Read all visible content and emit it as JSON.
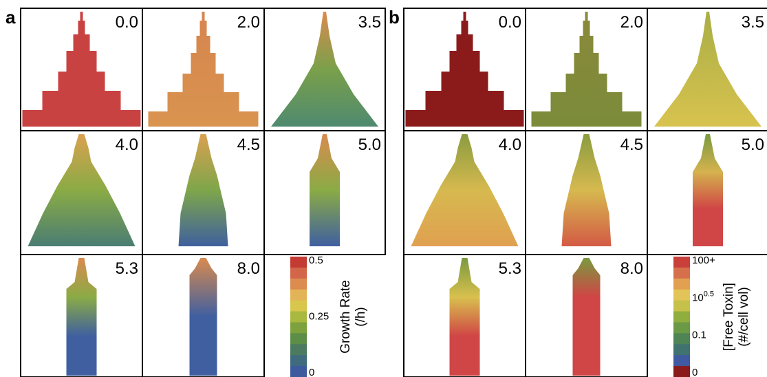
{
  "panels": [
    {
      "letter": "a",
      "frames": [
        "0.0",
        "2.0",
        "3.5",
        "4.0",
        "4.5",
        "5.0",
        "5.3",
        "8.0"
      ],
      "colorbar": {
        "ticks": [
          "0.5",
          "0.25",
          "0"
        ],
        "label": [
          "Growth Rate",
          "(/h)"
        ]
      }
    },
    {
      "letter": "b",
      "frames": [
        "0.0",
        "2.0",
        "3.5",
        "4.0",
        "4.5",
        "5.0",
        "5.3",
        "8.0"
      ],
      "colorbar": {
        "ticks": [
          {
            "base": "100+"
          },
          {
            "base": "10",
            "exponent": "0.5"
          },
          {
            "base": "0.1"
          },
          {
            "base": "0"
          }
        ],
        "label": [
          "[Free Toxin]",
          "(#/cell vol)"
        ]
      }
    }
  ]
}
